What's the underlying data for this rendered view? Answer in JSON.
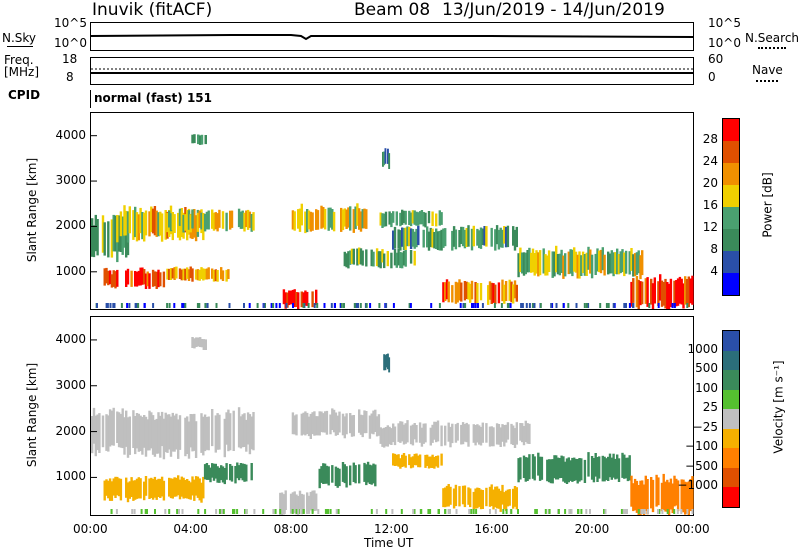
{
  "header": {
    "station": "Inuvik (fitACF)",
    "beam": "Beam 08",
    "date_range": "13/Jun/2019 - 14/Jun/2019"
  },
  "params": {
    "nsky_label": "N.Sky",
    "nsky_tick_top": "10^5",
    "nsky_tick_bottom": "10^0",
    "nsky_right_top": "10^5",
    "nsky_right_bottom": "10^0",
    "nsearch_label": "N.Search",
    "freq_label": "Freq.",
    "freq_unit": "[MHz]",
    "freq_tick_top": "18",
    "freq_tick_bottom": "8",
    "nave_tick_top": "60",
    "nave_tick_bottom": "0",
    "nave_label": "Nave",
    "cpid_label": "CPID",
    "cpid_value": "normal (fast) 151"
  },
  "colors": {
    "power_scale": [
      "#0000ff",
      "#2a4fa8",
      "#3a8a5a",
      "#4aa070",
      "#f0d000",
      "#f09000",
      "#e05000",
      "#ff0000"
    ],
    "velocity_scale": [
      "#2a4fa8",
      "#2b6e7a",
      "#3a8a5a",
      "#55c030",
      "#bfbfbf",
      "#f5b000",
      "#ff8000",
      "#e05000",
      "#ff0000"
    ],
    "ground_scatter": "#bfbfbf"
  },
  "chart_data": [
    {
      "type": "heatmap",
      "name": "power",
      "ylabel": "Slant Range [km]",
      "ylim": [
        180,
        4500
      ],
      "yticks": [
        "1000",
        "2000",
        "3000",
        "4000"
      ],
      "xticks": [
        "00:00",
        "04:00",
        "08:00",
        "12:00",
        "16:00",
        "20:00",
        "00:00"
      ],
      "colorbar_label": "Power [dB]",
      "colorbar_ticks": [
        "4",
        "8",
        "12",
        "16",
        "20",
        "24",
        "28"
      ],
      "colorbar_range": [
        0,
        32
      ],
      "blobs": [
        {
          "t0": 0.0,
          "t1": 1.5,
          "r0": 1300,
          "r1": 2200,
          "v": 12
        },
        {
          "t0": 1.0,
          "t1": 4.5,
          "r0": 1700,
          "r1": 2400,
          "v": 20
        },
        {
          "t0": 3.0,
          "t1": 6.5,
          "r0": 1900,
          "r1": 2350,
          "v": 18
        },
        {
          "t0": 0.5,
          "t1": 3.0,
          "r0": 650,
          "r1": 1050,
          "v": 28
        },
        {
          "t0": 3.0,
          "t1": 5.5,
          "r0": 800,
          "r1": 1100,
          "v": 22
        },
        {
          "t0": 7.5,
          "t1": 9.0,
          "r0": 200,
          "r1": 600,
          "v": 30
        },
        {
          "t0": 8.0,
          "t1": 11.0,
          "r0": 1900,
          "r1": 2450,
          "v": 19
        },
        {
          "t0": 10.0,
          "t1": 13.0,
          "r0": 1100,
          "r1": 1500,
          "v": 13
        },
        {
          "t0": 11.5,
          "t1": 14.0,
          "r0": 2000,
          "r1": 2350,
          "v": 14
        },
        {
          "t0": 12.0,
          "t1": 17.0,
          "r0": 1500,
          "r1": 2000,
          "v": 12
        },
        {
          "t0": 14.0,
          "t1": 17.0,
          "r0": 300,
          "r1": 800,
          "v": 24
        },
        {
          "t0": 17.0,
          "t1": 22.0,
          "r0": 900,
          "r1": 1500,
          "v": 16
        },
        {
          "t0": 21.5,
          "t1": 24.0,
          "r0": 200,
          "r1": 900,
          "v": 28
        },
        {
          "t0": 4.0,
          "t1": 4.6,
          "r0": 3800,
          "r1": 4050,
          "v": 12
        },
        {
          "t0": 11.6,
          "t1": 11.9,
          "r0": 3300,
          "r1": 3700,
          "v": 10
        }
      ]
    },
    {
      "type": "heatmap",
      "name": "velocity",
      "ylabel": "Slant Range [km]",
      "ylim": [
        180,
        4500
      ],
      "yticks": [
        "1000",
        "2000",
        "3000",
        "4000"
      ],
      "xticks": [
        "00:00",
        "04:00",
        "08:00",
        "12:00",
        "16:00",
        "20:00",
        "00:00"
      ],
      "xlabel": "Time UT",
      "colorbar_label": "Velocity [m s⁻¹]",
      "colorbar_ticks": [
        "1000",
        "500",
        "100",
        "25",
        "−25",
        "−100",
        "−500",
        "−1000"
      ],
      "blobs": [
        {
          "t0": 0.0,
          "t1": 6.5,
          "r0": 1500,
          "r1": 2450,
          "v": "ground"
        },
        {
          "t0": 8.0,
          "t1": 11.5,
          "r0": 1900,
          "r1": 2450,
          "v": "ground"
        },
        {
          "t0": 11.5,
          "t1": 17.5,
          "r0": 1700,
          "r1": 2200,
          "v": "ground"
        },
        {
          "t0": 0.5,
          "t1": 4.5,
          "r0": 500,
          "r1": 1000,
          "v": -100
        },
        {
          "t0": 4.5,
          "t1": 6.5,
          "r0": 900,
          "r1": 1300,
          "v": 150
        },
        {
          "t0": 7.5,
          "t1": 9.0,
          "r0": 200,
          "r1": 700,
          "v": "ground"
        },
        {
          "t0": 9.0,
          "t1": 11.5,
          "r0": 800,
          "r1": 1300,
          "v": 200
        },
        {
          "t0": 12.0,
          "t1": 14.0,
          "r0": 1200,
          "r1": 1500,
          "v": -60
        },
        {
          "t0": 14.0,
          "t1": 17.0,
          "r0": 300,
          "r1": 800,
          "v": -100
        },
        {
          "t0": 17.0,
          "t1": 21.5,
          "r0": 900,
          "r1": 1500,
          "v": 150
        },
        {
          "t0": 21.5,
          "t1": 24.0,
          "r0": 200,
          "r1": 1000,
          "v": -300
        },
        {
          "t0": 4.0,
          "t1": 4.6,
          "r0": 3800,
          "r1": 4050,
          "v": "ground"
        },
        {
          "t0": 11.6,
          "t1": 11.9,
          "r0": 3300,
          "r1": 3700,
          "v": 800
        }
      ]
    }
  ]
}
